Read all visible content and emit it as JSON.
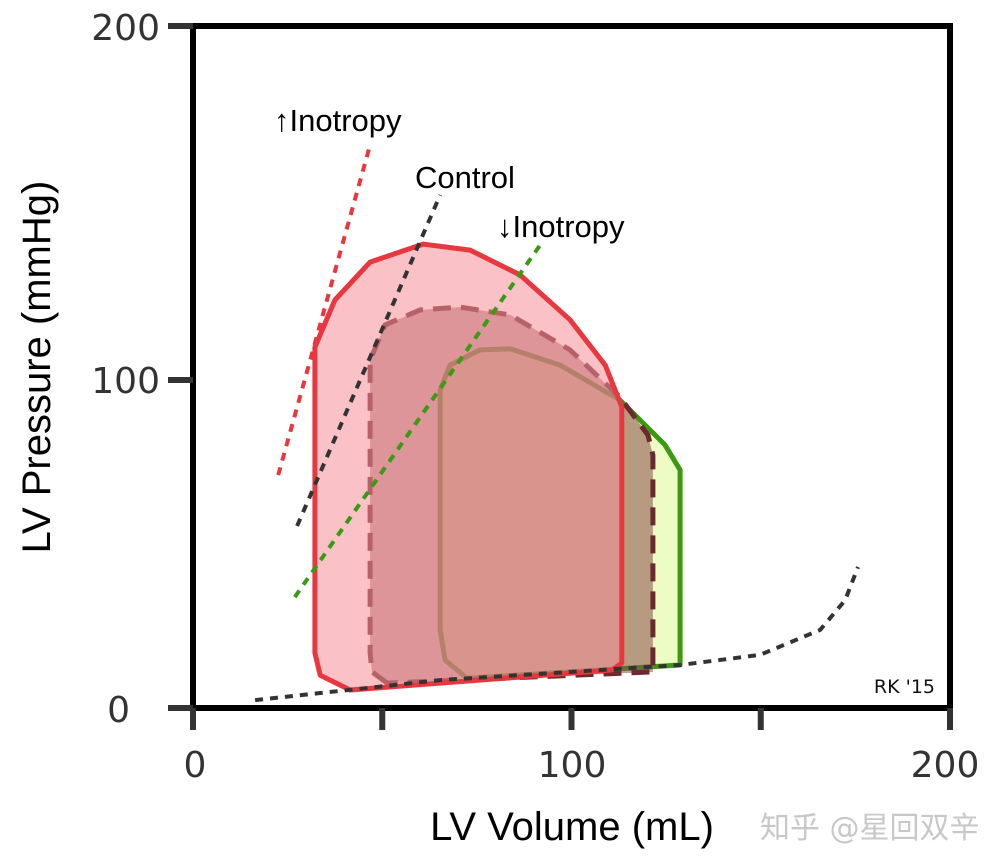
{
  "chart_data": {
    "type": "line",
    "xlabel": "LV Volume (mL)",
    "ylabel": "LV Pressure (mmHg)",
    "xlim": [
      0,
      200
    ],
    "ylim": [
      0,
      200
    ],
    "x_ticks": [
      0,
      50,
      100,
      150,
      200
    ],
    "x_tick_labels": [
      "0",
      "",
      "100",
      "",
      "200"
    ],
    "y_ticks": [
      0,
      100,
      200
    ],
    "y_tick_labels": [
      "0",
      "100",
      "200"
    ],
    "grid": false,
    "loops": [
      {
        "id": "decreased-inotropy",
        "stroke": "#3a9a12",
        "fill": "#ecfcc4",
        "dashed": false,
        "points": [
          [
            72.4,
            9.1
          ],
          [
            66.6,
            14.6
          ],
          [
            65.3,
            23.8
          ],
          [
            65.3,
            97
          ],
          [
            67.9,
            104.2
          ],
          [
            75.8,
            108.5
          ],
          [
            83.8,
            108.8
          ],
          [
            97,
            104.2
          ],
          [
            112.8,
            93.9
          ],
          [
            124.7,
            80.2
          ],
          [
            128.7,
            72.6
          ],
          [
            128.7,
            13.1
          ]
        ]
      },
      {
        "id": "control",
        "stroke": "#6b2a30",
        "fill": "#8a4a4a",
        "dashed": true,
        "points": [
          [
            51.3,
            7.6
          ],
          [
            47.3,
            11
          ],
          [
            46.8,
            16.8
          ],
          [
            46.8,
            105.6
          ],
          [
            50.7,
            115.5
          ],
          [
            60,
            119.8
          ],
          [
            70.5,
            120.6
          ],
          [
            83.8,
            118.4
          ],
          [
            99.6,
            108.5
          ],
          [
            112.8,
            94.8
          ],
          [
            120.2,
            83.2
          ],
          [
            121.5,
            77.1
          ],
          [
            121.5,
            11
          ]
        ]
      },
      {
        "id": "increased-inotropy",
        "stroke": "#e8373f",
        "fill": "#f58f97",
        "dashed": false,
        "points": [
          [
            41.5,
            5.5
          ],
          [
            33.6,
            10
          ],
          [
            32.2,
            16.8
          ],
          [
            32.2,
            109.3
          ],
          [
            37.5,
            122.6
          ],
          [
            46.8,
            133.3
          ],
          [
            60.8,
            138.4
          ],
          [
            73.2,
            136.7
          ],
          [
            86.4,
            129.7
          ],
          [
            99.6,
            117
          ],
          [
            108.9,
            104.2
          ],
          [
            113.3,
            91.8
          ],
          [
            113.3,
            13.7
          ],
          [
            110.7,
            11.6
          ]
        ]
      }
    ],
    "espvr_lines": [
      {
        "id": "increased-inotropy",
        "color": "#e8373f",
        "points": [
          [
            22.5,
            71
          ],
          [
            46.8,
            166.4
          ]
        ]
      },
      {
        "id": "control",
        "color": "#333333",
        "points": [
          [
            27.5,
            55.5
          ],
          [
            65.3,
            152.3
          ]
        ]
      },
      {
        "id": "decreased-inotropy",
        "color": "#3a9a12",
        "points": [
          [
            26.9,
            33.8
          ],
          [
            91.7,
            138.1
          ]
        ]
      }
    ],
    "edpvr": {
      "color": "#333333",
      "points": [
        [
          16.4,
          2.4
        ],
        [
          65.3,
          8.5
        ],
        [
          128.7,
          13.1
        ],
        [
          149.8,
          16.2
        ],
        [
          165.7,
          23.8
        ],
        [
          172.3,
          32.9
        ],
        [
          175.7,
          43
        ]
      ]
    },
    "annotations": {
      "increased": "↑Inotropy",
      "control": "Control",
      "decreased": "↓Inotropy",
      "signature": "RK '15"
    }
  },
  "watermark": "知乎 @星回双辛"
}
